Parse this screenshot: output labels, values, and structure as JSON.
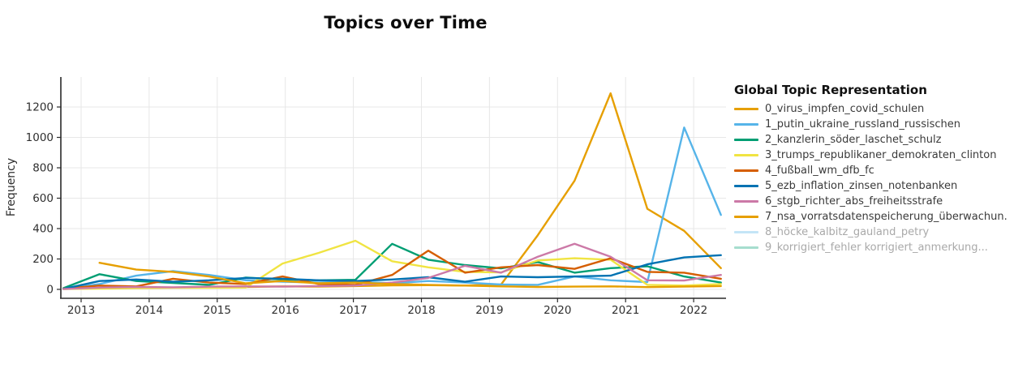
{
  "title": "Topics over Time",
  "y_axis_label": "Frequency",
  "legend": {
    "title": "Global Topic Representation",
    "items": [
      {
        "label": "0_virus_impfen_covid_schulen",
        "color": "#E69F00",
        "active": true
      },
      {
        "label": "1_putin_ukraine_russland_russischen",
        "color": "#56B4E9",
        "active": true
      },
      {
        "label": "2_kanzlerin_söder_laschet_schulz",
        "color": "#009E73",
        "active": true
      },
      {
        "label": "3_trumps_republikaner_demokraten_clinton",
        "color": "#F0E442",
        "active": true
      },
      {
        "label": "4_fußball_wm_dfb_fc",
        "color": "#D55E00",
        "active": true
      },
      {
        "label": "5_ezb_inflation_zinsen_notenbanken",
        "color": "#0072B2",
        "active": true
      },
      {
        "label": "6_stgb_richter_abs_freiheitsstrafe",
        "color": "#CC79A7",
        "active": true
      },
      {
        "label": "7_nsa_vorratsdatenspeicherung_überwachun.",
        "color": "#E69F00",
        "active": true
      },
      {
        "label": "8_höcke_kalbitz_gauland_petry",
        "color": "#56B4E9",
        "active": false
      },
      {
        "label": "9_korrigiert_fehler korrigiert_anmerkung...",
        "color": "#009E73",
        "active": false
      }
    ]
  },
  "chart_data": {
    "type": "line",
    "title": "Topics over Time",
    "xlabel": "",
    "ylabel": "Frequency",
    "grid": true,
    "legend_position": "right",
    "xlim": [
      2012.7,
      2022.55
    ],
    "ylim": [
      -60,
      1400
    ],
    "x_tick_values": [
      2013,
      2014,
      2015,
      2016,
      2017,
      2018,
      2019,
      2020,
      2021,
      2022
    ],
    "x_tick_labels": [
      "2013",
      "2014",
      "2015",
      "2016",
      "2017",
      "2018",
      "2019",
      "2020",
      "2021",
      "2022"
    ],
    "y_tick_values": [
      0,
      200,
      400,
      600,
      800,
      1000,
      1200
    ],
    "x": [
      2012.74,
      2013.27,
      2013.81,
      2014.35,
      2014.88,
      2015.42,
      2015.96,
      2016.49,
      2017.03,
      2017.57,
      2018.1,
      2018.64,
      2019.17,
      2019.71,
      2020.25,
      2020.78,
      2021.32,
      2021.86,
      2022.4
    ],
    "series": [
      {
        "name": "0_virus_impfen_covid_schulen",
        "color": "#E69F00",
        "y": [
          3,
          8,
          10,
          12,
          14,
          16,
          20,
          18,
          22,
          26,
          28,
          25,
          32,
          357,
          715,
          1290,
          530,
          385,
          140
        ]
      },
      {
        "name": "1_putin_ukraine_russland_russischen",
        "color": "#56B4E9",
        "y": [
          4,
          35,
          90,
          120,
          95,
          60,
          50,
          45,
          50,
          40,
          55,
          45,
          32,
          30,
          85,
          60,
          48,
          1065,
          490
        ]
      },
      {
        "name": "2_kanzlerin_söder_laschet_schulz",
        "color": "#009E73",
        "y": [
          8,
          100,
          55,
          42,
          30,
          78,
          65,
          60,
          63,
          300,
          195,
          160,
          138,
          180,
          110,
          140,
          152,
          85,
          45
        ]
      },
      {
        "name": "3_trumps_republikaner_demokraten_clinton",
        "color": "#F0E442",
        "y": [
          2,
          5,
          8,
          10,
          10,
          12,
          170,
          240,
          320,
          185,
          145,
          115,
          112,
          190,
          205,
          195,
          30,
          25,
          35
        ]
      },
      {
        "name": "4_fußball_wm_dfb_fc",
        "color": "#D55E00",
        "y": [
          5,
          25,
          20,
          70,
          45,
          35,
          85,
          35,
          30,
          95,
          255,
          110,
          145,
          160,
          135,
          205,
          115,
          110,
          70
        ]
      },
      {
        "name": "5_ezb_inflation_zinsen_notenbanken",
        "color": "#0072B2",
        "y": [
          3,
          55,
          65,
          50,
          60,
          75,
          70,
          60,
          55,
          65,
          80,
          50,
          85,
          80,
          85,
          90,
          165,
          210,
          225
        ]
      },
      {
        "name": "6_stgb_richter_abs_freiheitsstrafe",
        "color": "#CC79A7",
        "y": [
          2,
          12,
          16,
          14,
          18,
          20,
          18,
          22,
          25,
          45,
          75,
          155,
          110,
          215,
          300,
          215,
          60,
          58,
          95
        ]
      },
      {
        "name": "7_nsa_vorratsdatenspeicherung_überwachun.",
        "color": "#E69F00",
        "y": [
          null,
          175,
          130,
          115,
          85,
          40,
          55,
          40,
          45,
          35,
          30,
          25,
          20,
          16,
          18,
          20,
          15,
          18,
          22
        ]
      }
    ]
  }
}
